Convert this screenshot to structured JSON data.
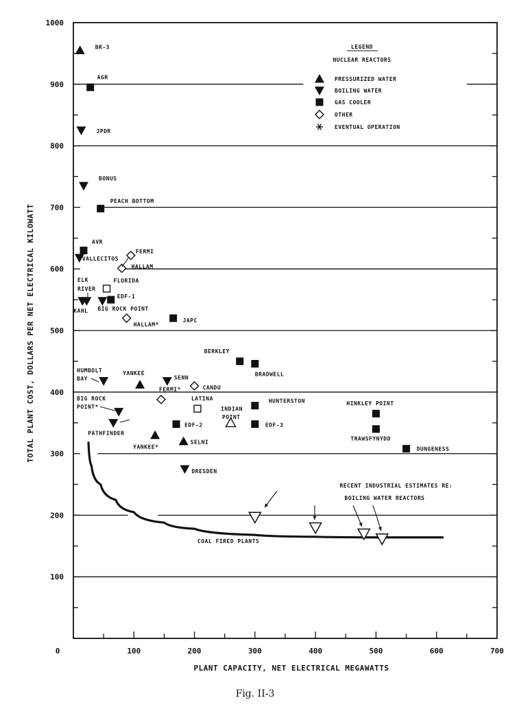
{
  "caption": "Fig. II-3",
  "chart_data": {
    "type": "scatter",
    "xlabel": "PLANT CAPACITY, NET ELECTRICAL MEGAWATTS",
    "ylabel": "TOTAL PLANT COST, DOLLARS PER NET ELECTRICAL KILOWATT",
    "xlim": [
      0,
      700
    ],
    "ylim": [
      0,
      1000
    ],
    "x_ticks": [
      "0",
      "100",
      "200",
      "300",
      "400",
      "500",
      "600",
      "700"
    ],
    "y_ticks": [
      "100",
      "200",
      "300",
      "400",
      "500",
      "600",
      "700",
      "800",
      "900",
      "1000"
    ],
    "grid": "horizontal lines at 200, 300, 400, 500, 600, 700, 800, 900",
    "legend": {
      "position": "top-right",
      "title": "LEGEND",
      "subtitle": "NUCLEAR REACTORS",
      "entries": [
        {
          "marker": "triangle-up-filled",
          "label": "PRESSURIZED WATER"
        },
        {
          "marker": "triangle-down-filled",
          "label": "BOILING WATER"
        },
        {
          "marker": "square-filled",
          "label": "GAS COOLER"
        },
        {
          "marker": "diamond-open",
          "label": "OTHER"
        },
        {
          "marker": "asterisk",
          "label": "EVENTUAL OPERATION"
        }
      ]
    },
    "series": [
      {
        "name": "PRESSURIZED WATER",
        "marker": "triangle-up-filled",
        "points": [
          {
            "label": "BR-3",
            "x": 11,
            "y": 955
          },
          {
            "label": "YANKEE",
            "x": 110,
            "y": 412
          },
          {
            "label": "YANKEE*",
            "x": 135,
            "y": 330
          },
          {
            "label": "SELNI",
            "x": 182,
            "y": 320
          }
        ]
      },
      {
        "name": "BOILING WATER",
        "marker": "triangle-down-filled",
        "points": [
          {
            "label": "JPDR",
            "x": 13,
            "y": 825
          },
          {
            "label": "BONUS",
            "x": 17,
            "y": 735
          },
          {
            "label": "VALLECITOS",
            "x": 10,
            "y": 618
          },
          {
            "label": "ELK RIVER",
            "x": 22,
            "y": 548
          },
          {
            "label": "KAHL",
            "x": 15,
            "y": 548
          },
          {
            "label": "BIG ROCK POINT",
            "x": 48,
            "y": 548
          },
          {
            "label": "HUMBOLT BAY",
            "x": 50,
            "y": 418
          },
          {
            "label": "SENN",
            "x": 155,
            "y": 418
          },
          {
            "label": "BIG ROCK POINT*",
            "x": 75,
            "y": 368
          },
          {
            "label": "PATHFINDER",
            "x": 66,
            "y": 350
          },
          {
            "label": "DRESDEN",
            "x": 184,
            "y": 275
          }
        ]
      },
      {
        "name": "GAS COOLER",
        "marker": "square-filled",
        "points": [
          {
            "label": "AGR",
            "x": 28,
            "y": 895
          },
          {
            "label": "PEACH BOTTOM",
            "x": 45,
            "y": 698
          },
          {
            "label": "AVR",
            "x": 17,
            "y": 630
          },
          {
            "label": "EDF-1",
            "x": 62,
            "y": 550
          },
          {
            "label": "JAPC",
            "x": 165,
            "y": 520
          },
          {
            "label": "BERKLEY",
            "x": 275,
            "y": 450
          },
          {
            "label": "BRADWELL",
            "x": 300,
            "y": 446
          },
          {
            "label": "HUNTERSTON",
            "x": 300,
            "y": 378
          },
          {
            "label": "EDF-2",
            "x": 170,
            "y": 348
          },
          {
            "label": "EDF-3",
            "x": 300,
            "y": 348
          },
          {
            "label": "HINKLEY POINT",
            "x": 500,
            "y": 365
          },
          {
            "label": "TRAWSFYNYDD",
            "x": 500,
            "y": 340
          },
          {
            "label": "DUNGENESS",
            "x": 550,
            "y": 308
          }
        ]
      },
      {
        "name": "OTHER",
        "marker": "diamond-open",
        "points": [
          {
            "label": "FERMI",
            "x": 95,
            "y": 622
          },
          {
            "label": "HALLAM",
            "x": 80,
            "y": 601
          },
          {
            "label": "HALLAM*",
            "x": 88,
            "y": 520
          },
          {
            "label": "FERMI*",
            "x": 145,
            "y": 388
          },
          {
            "label": "CANDU",
            "x": 200,
            "y": 410
          }
        ]
      },
      {
        "name": "OTHER (OPEN SQUARE)",
        "marker": "square-open",
        "points": [
          {
            "label": "FLORIDA",
            "x": 55,
            "y": 568
          },
          {
            "label": "LATINA",
            "x": 205,
            "y": 373
          }
        ]
      },
      {
        "name": "OTHER (OPEN TRIANGLE)",
        "marker": "triangle-up-open",
        "points": [
          {
            "label": "INDIAN POINT",
            "x": 260,
            "y": 350
          }
        ]
      },
      {
        "name": "RECENT INDUSTRIAL ESTIMATES RE: BOILING WATER REACTORS",
        "marker": "triangle-down-open",
        "points": [
          {
            "x": 300,
            "y": 197
          },
          {
            "x": 400,
            "y": 180
          },
          {
            "x": 480,
            "y": 170
          },
          {
            "x": 510,
            "y": 162
          }
        ]
      },
      {
        "name": "COAL FIRED PLANTS",
        "type": "line",
        "points": [
          {
            "x": 25,
            "y": 318
          },
          {
            "x": 30,
            "y": 280
          },
          {
            "x": 45,
            "y": 250
          },
          {
            "x": 70,
            "y": 225
          },
          {
            "x": 100,
            "y": 205
          },
          {
            "x": 150,
            "y": 188
          },
          {
            "x": 200,
            "y": 178
          },
          {
            "x": 300,
            "y": 168
          },
          {
            "x": 400,
            "y": 165
          },
          {
            "x": 500,
            "y": 164
          },
          {
            "x": 610,
            "y": 164
          }
        ]
      }
    ],
    "annotations": [
      {
        "text": "COAL FIRED PLANTS",
        "x": 205,
        "y": 155
      },
      {
        "text": "RECENT INDUSTRIAL ESTIMATES RE:",
        "x": 440,
        "y": 245
      },
      {
        "text": "BOILING WATER REACTORS",
        "x": 448,
        "y": 225
      }
    ],
    "label_lines": {
      "BIG_ROCK_POINT": "BIG ROCK POINT",
      "ELK": "ELK",
      "RIVER": "RIVER",
      "HUMBOLT": "HUMBOLT",
      "BAY": "BAY",
      "BIG_ROCK": "BIG ROCK",
      "POINT_STAR": "POINT*",
      "INDIAN": "INDIAN",
      "POINT": "POINT"
    }
  }
}
